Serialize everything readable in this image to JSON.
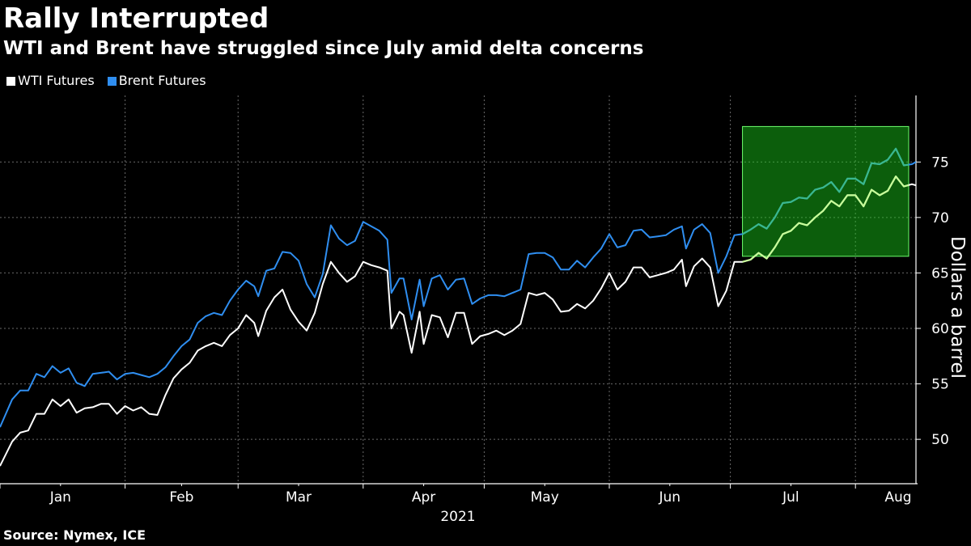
{
  "chart_data": {
    "type": "line",
    "title": "Rally Interrupted",
    "subtitle": "WTI and Brent have struggled since July amid delta concerns",
    "source": "Source: Nymex, ICE",
    "ylabel": "Dollars a barrel",
    "year_label": "2021",
    "ylim": [
      46,
      81
    ],
    "yticks": [
      50,
      55,
      60,
      65,
      70,
      75
    ],
    "months": [
      {
        "label": "Jan",
        "tick": "Jan 1",
        "center": "Jan 16"
      },
      {
        "label": "Feb",
        "tick": "Feb 1",
        "center": "Feb 15"
      },
      {
        "label": "Mar",
        "tick": "Mar 1",
        "center": "Mar 16"
      },
      {
        "label": "Apr",
        "tick": "Apr 1",
        "center": "Apr 16"
      },
      {
        "label": "May",
        "tick": "May 1",
        "center": "May 16"
      },
      {
        "label": "Jun",
        "tick": "Jun 1",
        "center": "Jun 16"
      },
      {
        "label": "Jul",
        "tick": "Jul 1",
        "center": "Jul 16"
      },
      {
        "label": "Aug",
        "tick": "Aug 1",
        "center": "Aug 16"
      }
    ],
    "x_range": [
      "Jan 1",
      "Aug 16"
    ],
    "highlight": {
      "x_start": "Jul 4",
      "x_end": "Aug 16",
      "y_start": 66.5,
      "y_end": 78.2,
      "color": "#1bd01b"
    },
    "series": [
      {
        "name": "WTI Futures",
        "color": "#ffffff",
        "highlight_color": "#c8ff9a",
        "points": [
          [
            "Jan 1",
            47.6
          ],
          [
            "Jan 4",
            49.8
          ],
          [
            "Jan 6",
            50.6
          ],
          [
            "Jan 8",
            50.8
          ],
          [
            "Jan 10",
            52.3
          ],
          [
            "Jan 12",
            52.3
          ],
          [
            "Jan 14",
            53.6
          ],
          [
            "Jan 16",
            53.0
          ],
          [
            "Jan 18",
            53.6
          ],
          [
            "Jan 20",
            52.4
          ],
          [
            "Jan 22",
            52.8
          ],
          [
            "Jan 24",
            52.9
          ],
          [
            "Jan 26",
            53.2
          ],
          [
            "Jan 28",
            53.2
          ],
          [
            "Jan 30",
            52.3
          ],
          [
            "Feb 1",
            53.0
          ],
          [
            "Feb 3",
            52.6
          ],
          [
            "Feb 5",
            52.9
          ],
          [
            "Feb 7",
            52.3
          ],
          [
            "Feb 9",
            52.2
          ],
          [
            "Feb 11",
            54.0
          ],
          [
            "Feb 13",
            55.5
          ],
          [
            "Feb 15",
            56.3
          ],
          [
            "Feb 17",
            56.9
          ],
          [
            "Feb 19",
            58.0
          ],
          [
            "Feb 21",
            58.4
          ],
          [
            "Feb 23",
            58.7
          ],
          [
            "Feb 25",
            58.4
          ],
          [
            "Feb 27",
            59.4
          ],
          [
            "Mar 1",
            60.0
          ],
          [
            "Mar 3",
            61.2
          ],
          [
            "Mar 5",
            60.5
          ],
          [
            "Mar 6",
            59.3
          ],
          [
            "Mar 8",
            61.6
          ],
          [
            "Mar 10",
            62.8
          ],
          [
            "Mar 12",
            63.5
          ],
          [
            "Mar 14",
            61.7
          ],
          [
            "Mar 16",
            60.6
          ],
          [
            "Mar 18",
            59.8
          ],
          [
            "Mar 20",
            61.4
          ],
          [
            "Mar 22",
            64.0
          ],
          [
            "Mar 24",
            66.0
          ],
          [
            "Mar 26",
            65.0
          ],
          [
            "Mar 28",
            64.2
          ],
          [
            "Mar 30",
            64.7
          ],
          [
            "Apr 1",
            66.0
          ],
          [
            "Apr 3",
            65.7
          ],
          [
            "Apr 5",
            65.5
          ],
          [
            "Apr 7",
            65.2
          ],
          [
            "Apr 8",
            60.0
          ],
          [
            "Apr 10",
            61.5
          ],
          [
            "Apr 11",
            61.2
          ],
          [
            "Apr 13",
            57.8
          ],
          [
            "Apr 15",
            61.5
          ],
          [
            "Apr 16",
            58.6
          ],
          [
            "Apr 18",
            61.2
          ],
          [
            "Apr 20",
            61.0
          ],
          [
            "Apr 22",
            59.2
          ],
          [
            "Apr 24",
            61.4
          ],
          [
            "Apr 26",
            61.4
          ],
          [
            "Apr 28",
            58.6
          ],
          [
            "Apr 30",
            59.3
          ],
          [
            "May 2",
            59.5
          ],
          [
            "May 4",
            59.8
          ],
          [
            "May 6",
            59.4
          ],
          [
            "May 8",
            59.8
          ],
          [
            "May 10",
            60.4
          ],
          [
            "May 12",
            63.2
          ],
          [
            "May 14",
            63.0
          ],
          [
            "May 16",
            63.2
          ],
          [
            "May 18",
            62.6
          ],
          [
            "May 20",
            61.5
          ],
          [
            "May 22",
            61.6
          ],
          [
            "May 24",
            62.2
          ],
          [
            "May 26",
            61.8
          ],
          [
            "May 28",
            62.5
          ],
          [
            "May 30",
            63.6
          ],
          [
            "Jun 1",
            65.0
          ],
          [
            "Jun 3",
            63.5
          ],
          [
            "Jun 5",
            64.2
          ],
          [
            "Jun 7",
            65.5
          ],
          [
            "Jun 9",
            65.5
          ],
          [
            "Jun 11",
            64.6
          ],
          [
            "Jun 13",
            64.8
          ],
          [
            "Jun 15",
            65.0
          ],
          [
            "Jun 17",
            65.3
          ],
          [
            "Jun 19",
            66.2
          ],
          [
            "Jun 20",
            63.8
          ],
          [
            "Jun 22",
            65.6
          ],
          [
            "Jun 24",
            66.3
          ],
          [
            "Jun 26",
            65.5
          ],
          [
            "Jun 28",
            62.0
          ],
          [
            "Jun 30",
            63.4
          ],
          [
            "Jul 2",
            66.0
          ],
          [
            "Jul 4",
            66.0
          ],
          [
            "Jul 6",
            66.2
          ],
          [
            "Jul 8",
            66.8
          ],
          [
            "Jul 10",
            66.3
          ],
          [
            "Jul 12",
            67.3
          ],
          [
            "Jul 14",
            68.5
          ],
          [
            "Jul 16",
            68.8
          ],
          [
            "Jul 18",
            69.5
          ],
          [
            "Jul 20",
            69.3
          ],
          [
            "Jul 22",
            70.0
          ],
          [
            "Jul 24",
            70.6
          ],
          [
            "Jul 26",
            71.5
          ],
          [
            "Jul 28",
            71.0
          ],
          [
            "Jul 30",
            72.0
          ],
          [
            "Aug 1",
            72.0
          ],
          [
            "Aug 3",
            71.0
          ],
          [
            "Aug 5",
            72.5
          ],
          [
            "Aug 7",
            72.0
          ],
          [
            "Aug 9",
            72.4
          ],
          [
            "Aug 11",
            73.7
          ],
          [
            "Aug 13",
            72.8
          ],
          [
            "Aug 15",
            73.0
          ],
          [
            "Aug 16",
            72.9
          ]
        ]
      },
      {
        "name": "Brent Futures",
        "color": "#2f8ef0",
        "highlight_color": "#3ab88f",
        "points": [
          [
            "Jan 1",
            51.1
          ],
          [
            "Jan 4",
            53.6
          ],
          [
            "Jan 6",
            54.4
          ],
          [
            "Jan 8",
            54.4
          ],
          [
            "Jan 10",
            55.9
          ],
          [
            "Jan 12",
            55.6
          ],
          [
            "Jan 14",
            56.6
          ],
          [
            "Jan 16",
            56.0
          ],
          [
            "Jan 18",
            56.4
          ],
          [
            "Jan 20",
            55.1
          ],
          [
            "Jan 22",
            54.8
          ],
          [
            "Jan 24",
            55.9
          ],
          [
            "Jan 26",
            56.0
          ],
          [
            "Jan 28",
            56.1
          ],
          [
            "Jan 30",
            55.4
          ],
          [
            "Feb 1",
            55.9
          ],
          [
            "Feb 3",
            56.0
          ],
          [
            "Feb 5",
            55.8
          ],
          [
            "Feb 7",
            55.6
          ],
          [
            "Feb 9",
            55.9
          ],
          [
            "Feb 11",
            56.5
          ],
          [
            "Feb 13",
            57.5
          ],
          [
            "Feb 15",
            58.4
          ],
          [
            "Feb 17",
            59.0
          ],
          [
            "Feb 19",
            60.5
          ],
          [
            "Feb 21",
            61.1
          ],
          [
            "Feb 23",
            61.4
          ],
          [
            "Feb 25",
            61.2
          ],
          [
            "Feb 27",
            62.5
          ],
          [
            "Mar 1",
            63.5
          ],
          [
            "Mar 3",
            64.3
          ],
          [
            "Mar 5",
            63.8
          ],
          [
            "Mar 6",
            62.9
          ],
          [
            "Mar 8",
            65.2
          ],
          [
            "Mar 10",
            65.4
          ],
          [
            "Mar 12",
            66.9
          ],
          [
            "Mar 14",
            66.8
          ],
          [
            "Mar 16",
            66.1
          ],
          [
            "Mar 18",
            64.0
          ],
          [
            "Mar 20",
            62.8
          ],
          [
            "Mar 22",
            64.9
          ],
          [
            "Mar 24",
            69.3
          ],
          [
            "Mar 26",
            68.1
          ],
          [
            "Mar 28",
            67.5
          ],
          [
            "Mar 30",
            67.9
          ],
          [
            "Apr 1",
            69.6
          ],
          [
            "Apr 3",
            69.2
          ],
          [
            "Apr 5",
            68.8
          ],
          [
            "Apr 7",
            68.0
          ],
          [
            "Apr 8",
            63.2
          ],
          [
            "Apr 10",
            64.5
          ],
          [
            "Apr 11",
            64.5
          ],
          [
            "Apr 13",
            60.8
          ],
          [
            "Apr 15",
            64.4
          ],
          [
            "Apr 16",
            62.0
          ],
          [
            "Apr 18",
            64.5
          ],
          [
            "Apr 20",
            64.8
          ],
          [
            "Apr 22",
            63.5
          ],
          [
            "Apr 24",
            64.4
          ],
          [
            "Apr 26",
            64.5
          ],
          [
            "Apr 28",
            62.2
          ],
          [
            "Apr 30",
            62.7
          ],
          [
            "May 2",
            63.0
          ],
          [
            "May 4",
            63.0
          ],
          [
            "May 6",
            62.9
          ],
          [
            "May 8",
            63.2
          ],
          [
            "May 10",
            63.5
          ],
          [
            "May 12",
            66.7
          ],
          [
            "May 14",
            66.8
          ],
          [
            "May 16",
            66.8
          ],
          [
            "May 18",
            66.4
          ],
          [
            "May 20",
            65.3
          ],
          [
            "May 22",
            65.3
          ],
          [
            "May 24",
            66.1
          ],
          [
            "May 26",
            65.5
          ],
          [
            "May 28",
            66.4
          ],
          [
            "May 30",
            67.2
          ],
          [
            "Jun 1",
            68.5
          ],
          [
            "Jun 3",
            67.3
          ],
          [
            "Jun 5",
            67.5
          ],
          [
            "Jun 7",
            68.8
          ],
          [
            "Jun 9",
            68.9
          ],
          [
            "Jun 11",
            68.2
          ],
          [
            "Jun 13",
            68.3
          ],
          [
            "Jun 15",
            68.4
          ],
          [
            "Jun 17",
            68.9
          ],
          [
            "Jun 19",
            69.2
          ],
          [
            "Jun 20",
            67.2
          ],
          [
            "Jun 22",
            68.9
          ],
          [
            "Jun 24",
            69.4
          ],
          [
            "Jun 26",
            68.6
          ],
          [
            "Jun 28",
            65.0
          ],
          [
            "Jun 30",
            66.5
          ],
          [
            "Jul 2",
            68.4
          ],
          [
            "Jul 4",
            68.5
          ],
          [
            "Jul 6",
            68.9
          ],
          [
            "Jul 8",
            69.4
          ],
          [
            "Jul 10",
            69.0
          ],
          [
            "Jul 12",
            70.0
          ],
          [
            "Jul 14",
            71.3
          ],
          [
            "Jul 16",
            71.4
          ],
          [
            "Jul 18",
            71.8
          ],
          [
            "Jul 20",
            71.7
          ],
          [
            "Jul 22",
            72.5
          ],
          [
            "Jul 24",
            72.7
          ],
          [
            "Jul 26",
            73.2
          ],
          [
            "Jul 28",
            72.3
          ],
          [
            "Jul 30",
            73.5
          ],
          [
            "Aug 1",
            73.5
          ],
          [
            "Aug 3",
            73.0
          ],
          [
            "Aug 5",
            74.9
          ],
          [
            "Aug 7",
            74.8
          ],
          [
            "Aug 9",
            75.2
          ],
          [
            "Aug 11",
            76.2
          ],
          [
            "Aug 13",
            74.7
          ],
          [
            "Aug 15",
            74.8
          ],
          [
            "Aug 16",
            75.0
          ]
        ]
      }
    ]
  }
}
